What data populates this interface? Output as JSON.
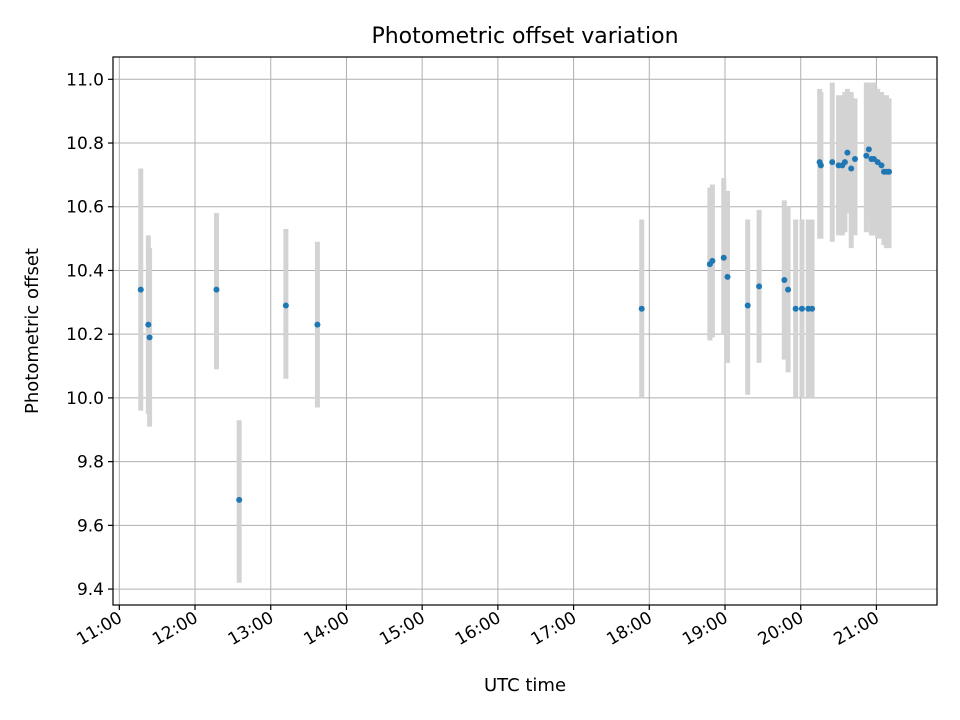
{
  "chart_data": {
    "type": "scatter",
    "title": "Photometric offset variation",
    "xlabel": "UTC time",
    "ylabel": "Photometric offset",
    "x_ticks": [
      "11:00",
      "12:00",
      "13:00",
      "14:00",
      "15:00",
      "16:00",
      "17:00",
      "18:00",
      "19:00",
      "20:00",
      "21:00"
    ],
    "y_ticks": [
      9.4,
      9.6,
      9.8,
      10.0,
      10.2,
      10.4,
      10.6,
      10.8,
      11.0
    ],
    "xlim": [
      "10:55",
      "21:48"
    ],
    "ylim": [
      9.35,
      11.07
    ],
    "grid": true,
    "colors": {
      "point": "#1f77b4",
      "errorbar": "#d3d3d3"
    },
    "series": [
      {
        "points": [
          {
            "x": "11:17",
            "y": 10.34,
            "low": 9.96,
            "high": 10.72
          },
          {
            "x": "11:23",
            "y": 10.23,
            "low": 9.95,
            "high": 10.51
          },
          {
            "x": "11:24",
            "y": 10.19,
            "low": 9.91,
            "high": 10.47
          },
          {
            "x": "12:17",
            "y": 10.34,
            "low": 10.09,
            "high": 10.58
          },
          {
            "x": "12:35",
            "y": 9.68,
            "low": 9.42,
            "high": 9.93
          },
          {
            "x": "13:12",
            "y": 10.29,
            "low": 10.06,
            "high": 10.53
          },
          {
            "x": "13:37",
            "y": 10.23,
            "low": 9.97,
            "high": 10.49
          },
          {
            "x": "17:54",
            "y": 10.28,
            "low": 10.0,
            "high": 10.56
          },
          {
            "x": "18:48",
            "y": 10.42,
            "low": 10.18,
            "high": 10.66
          },
          {
            "x": "18:50",
            "y": 10.43,
            "low": 10.19,
            "high": 10.67
          },
          {
            "x": "18:59",
            "y": 10.44,
            "low": 10.2,
            "high": 10.69
          },
          {
            "x": "19:02",
            "y": 10.38,
            "low": 10.11,
            "high": 10.65
          },
          {
            "x": "19:18",
            "y": 10.29,
            "low": 10.01,
            "high": 10.56
          },
          {
            "x": "19:27",
            "y": 10.35,
            "low": 10.11,
            "high": 10.59
          },
          {
            "x": "19:47",
            "y": 10.37,
            "low": 10.12,
            "high": 10.62
          },
          {
            "x": "19:50",
            "y": 10.34,
            "low": 10.08,
            "high": 10.6
          },
          {
            "x": "19:56",
            "y": 10.28,
            "low": 10.0,
            "high": 10.56
          },
          {
            "x": "20:01",
            "y": 10.28,
            "low": 10.0,
            "high": 10.56
          },
          {
            "x": "20:06",
            "y": 10.28,
            "low": 10.0,
            "high": 10.56
          },
          {
            "x": "20:09",
            "y": 10.28,
            "low": 10.0,
            "high": 10.56
          },
          {
            "x": "20:15",
            "y": 10.74,
            "low": 10.5,
            "high": 10.97
          },
          {
            "x": "20:16",
            "y": 10.73,
            "low": 10.5,
            "high": 10.96
          },
          {
            "x": "20:25",
            "y": 10.74,
            "low": 10.49,
            "high": 10.99
          },
          {
            "x": "20:30",
            "y": 10.73,
            "low": 10.51,
            "high": 10.95
          },
          {
            "x": "20:33",
            "y": 10.73,
            "low": 10.51,
            "high": 10.95
          },
          {
            "x": "20:35",
            "y": 10.74,
            "low": 10.52,
            "high": 10.96
          },
          {
            "x": "20:37",
            "y": 10.77,
            "low": 10.58,
            "high": 10.97
          },
          {
            "x": "20:40",
            "y": 10.72,
            "low": 10.47,
            "high": 10.96
          },
          {
            "x": "20:43",
            "y": 10.75,
            "low": 10.51,
            "high": 10.94
          },
          {
            "x": "20:52",
            "y": 10.76,
            "low": 10.52,
            "high": 10.99
          },
          {
            "x": "20:54",
            "y": 10.78,
            "low": 10.57,
            "high": 10.99
          },
          {
            "x": "20:56",
            "y": 10.75,
            "low": 10.51,
            "high": 10.98
          },
          {
            "x": "20:58",
            "y": 10.75,
            "low": 10.51,
            "high": 10.99
          },
          {
            "x": "21:01",
            "y": 10.74,
            "low": 10.5,
            "high": 10.97
          },
          {
            "x": "21:04",
            "y": 10.73,
            "low": 10.5,
            "high": 10.96
          },
          {
            "x": "21:06",
            "y": 10.71,
            "low": 10.48,
            "high": 10.95
          },
          {
            "x": "21:08",
            "y": 10.71,
            "low": 10.47,
            "high": 10.95
          },
          {
            "x": "21:10",
            "y": 10.71,
            "low": 10.47,
            "high": 10.94
          }
        ]
      }
    ]
  }
}
